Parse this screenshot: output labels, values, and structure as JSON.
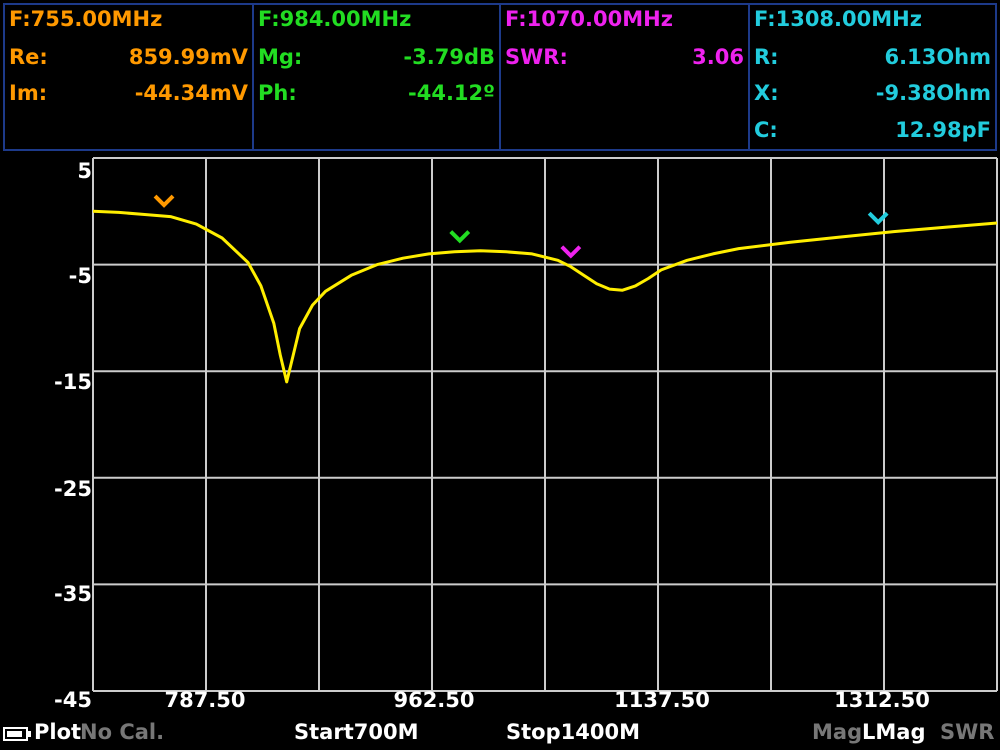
{
  "markers": [
    {
      "freq": "F:755.00MHz",
      "color": "#ff9900",
      "rows": [
        {
          "label": "Re:",
          "value": "859.99mV"
        },
        {
          "label": "Im:",
          "value": "-44.34mV"
        }
      ]
    },
    {
      "freq": "F:984.00MHz",
      "color": "#22dd22",
      "rows": [
        {
          "label": "Mg:",
          "value": "-3.79dB"
        },
        {
          "label": "Ph:",
          "value": "-44.12º"
        }
      ]
    },
    {
      "freq": "F:1070.00MHz",
      "color": "#ee22ee",
      "rows": [
        {
          "label": "SWR:",
          "value": "3.06"
        }
      ]
    },
    {
      "freq": "F:1308.00MHz",
      "color": "#22ccdd",
      "rows": [
        {
          "label": "R:",
          "value": "6.13Ohm"
        },
        {
          "label": "X:",
          "value": "-9.38Ohm"
        },
        {
          "label": "C:",
          "value": "12.98pF"
        }
      ]
    }
  ],
  "y_ticks": [
    "5",
    "-5",
    "-15",
    "-25",
    "-35",
    "-45"
  ],
  "x_ticks": [
    "787.50",
    "962.50",
    "1137.50",
    "1312.50"
  ],
  "status": {
    "mode": "Plot",
    "calibration": "No Cal.",
    "start": "Start700M",
    "stop": "Stop1400M",
    "mag": "Mag",
    "lmag": "LMag",
    "swr": "SWR"
  },
  "chart_data": {
    "type": "line",
    "xlabel": "",
    "ylabel": "",
    "xlim": [
      700,
      1400
    ],
    "ylim": [
      -45,
      5
    ],
    "trace_color": "#ffee00",
    "series": [
      {
        "x": [
          700,
          720,
          740,
          760,
          780,
          800,
          820,
          830,
          840,
          845,
          850,
          855,
          860,
          870,
          880,
          900,
          920,
          940,
          960,
          980,
          1000,
          1020,
          1040,
          1060,
          1070,
          1080,
          1090,
          1100,
          1110,
          1120,
          1130,
          1140,
          1160,
          1180,
          1200,
          1240,
          1280,
          1320,
          1360,
          1400
        ],
        "y": [
          0.0,
          -0.1,
          -0.3,
          -0.5,
          -1.2,
          -2.5,
          -4.8,
          -7.0,
          -10.5,
          -13.5,
          -16.0,
          -13.5,
          -11.0,
          -8.8,
          -7.5,
          -6.0,
          -5.0,
          -4.4,
          -4.0,
          -3.8,
          -3.7,
          -3.8,
          -4.0,
          -4.6,
          -5.2,
          -6.0,
          -6.8,
          -7.3,
          -7.4,
          -7.0,
          -6.3,
          -5.5,
          -4.6,
          -4.0,
          -3.5,
          -2.9,
          -2.4,
          -1.9,
          -1.5,
          -1.1
        ]
      }
    ],
    "markers_x": [
      755,
      984,
      1070,
      1308
    ]
  }
}
